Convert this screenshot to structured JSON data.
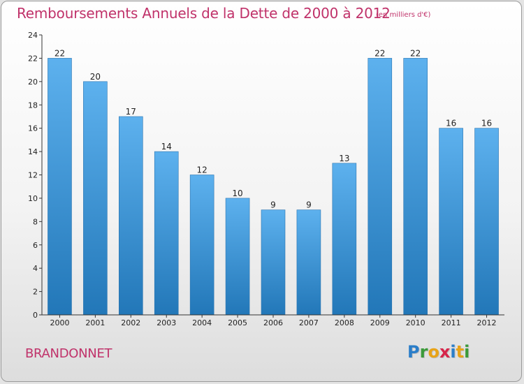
{
  "header": {
    "title": "Remboursements Annuels de la Dette de 2000 à 2012",
    "subtitle": "(en milliers d'€)"
  },
  "footer": {
    "commune": "BRANDONNET",
    "logo_letters": [
      "P",
      "r",
      "o",
      "x",
      "i",
      "t",
      "i"
    ],
    "logo_colors": [
      "#2b7ec9",
      "#3b9a3a",
      "#e8a317",
      "#d6254a",
      "#2b7ec9",
      "#e8a317",
      "#3b9a3a"
    ]
  },
  "chart_data": {
    "type": "bar",
    "categories": [
      "2000",
      "2001",
      "2002",
      "2003",
      "2004",
      "2005",
      "2006",
      "2007",
      "2008",
      "2009",
      "2010",
      "2011",
      "2012"
    ],
    "values": [
      22,
      20,
      17,
      14,
      12,
      10,
      9,
      9,
      13,
      22,
      22,
      16,
      16
    ],
    "data_labels": [
      "22",
      "20",
      "17",
      "14",
      "12",
      "10",
      "9",
      "9",
      "13",
      "22",
      "22",
      "16",
      "16"
    ],
    "ylim": [
      0,
      24
    ],
    "yticks": [
      0,
      2,
      4,
      6,
      8,
      10,
      12,
      14,
      16,
      18,
      20,
      22,
      24
    ],
    "grid": false,
    "bar_color_top": "#5db1ee",
    "bar_color_bottom": "#2277b8"
  }
}
